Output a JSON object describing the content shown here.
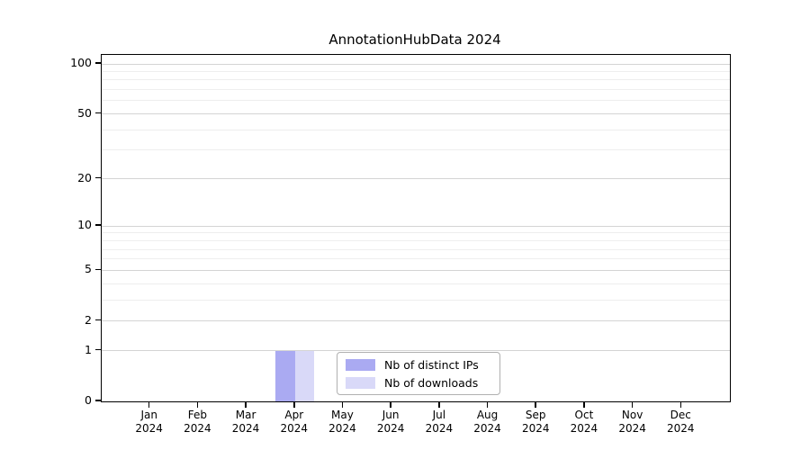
{
  "chart_data": {
    "type": "bar",
    "title": "AnnotationHubData 2024",
    "categories": [
      {
        "month": "Jan",
        "year": "2024"
      },
      {
        "month": "Feb",
        "year": "2024"
      },
      {
        "month": "Mar",
        "year": "2024"
      },
      {
        "month": "Apr",
        "year": "2024"
      },
      {
        "month": "May",
        "year": "2024"
      },
      {
        "month": "Jun",
        "year": "2024"
      },
      {
        "month": "Jul",
        "year": "2024"
      },
      {
        "month": "Aug",
        "year": "2024"
      },
      {
        "month": "Sep",
        "year": "2024"
      },
      {
        "month": "Oct",
        "year": "2024"
      },
      {
        "month": "Nov",
        "year": "2024"
      },
      {
        "month": "Dec",
        "year": "2024"
      }
    ],
    "series": [
      {
        "name": "Nb of distinct IPs",
        "color": "#aaaaf2",
        "values": [
          0,
          0,
          0,
          1,
          0,
          0,
          0,
          0,
          0,
          0,
          0,
          0
        ]
      },
      {
        "name": "Nb of downloads",
        "color": "#d9d9f8",
        "values": [
          0,
          0,
          0,
          1,
          0,
          0,
          0,
          0,
          0,
          0,
          0,
          0
        ]
      }
    ],
    "xlabel": "",
    "ylabel": "",
    "yscale": "log1p",
    "ylim": [
      0,
      113
    ],
    "y_major_ticks": [
      100,
      50,
      20,
      10,
      5,
      2,
      1,
      0
    ],
    "y_minor_gridlines": [
      3,
      4,
      6,
      7,
      8,
      9,
      30,
      40,
      60,
      70,
      80,
      90
    ],
    "grid": true,
    "legend": {
      "position": "lower center",
      "entries": [
        "Nb of distinct IPs",
        "Nb of downloads"
      ]
    }
  },
  "colors": {
    "spine": "#000000",
    "grid_major": "#d4d4d4",
    "grid_minor": "#eeeeee",
    "background": "#ffffff"
  }
}
